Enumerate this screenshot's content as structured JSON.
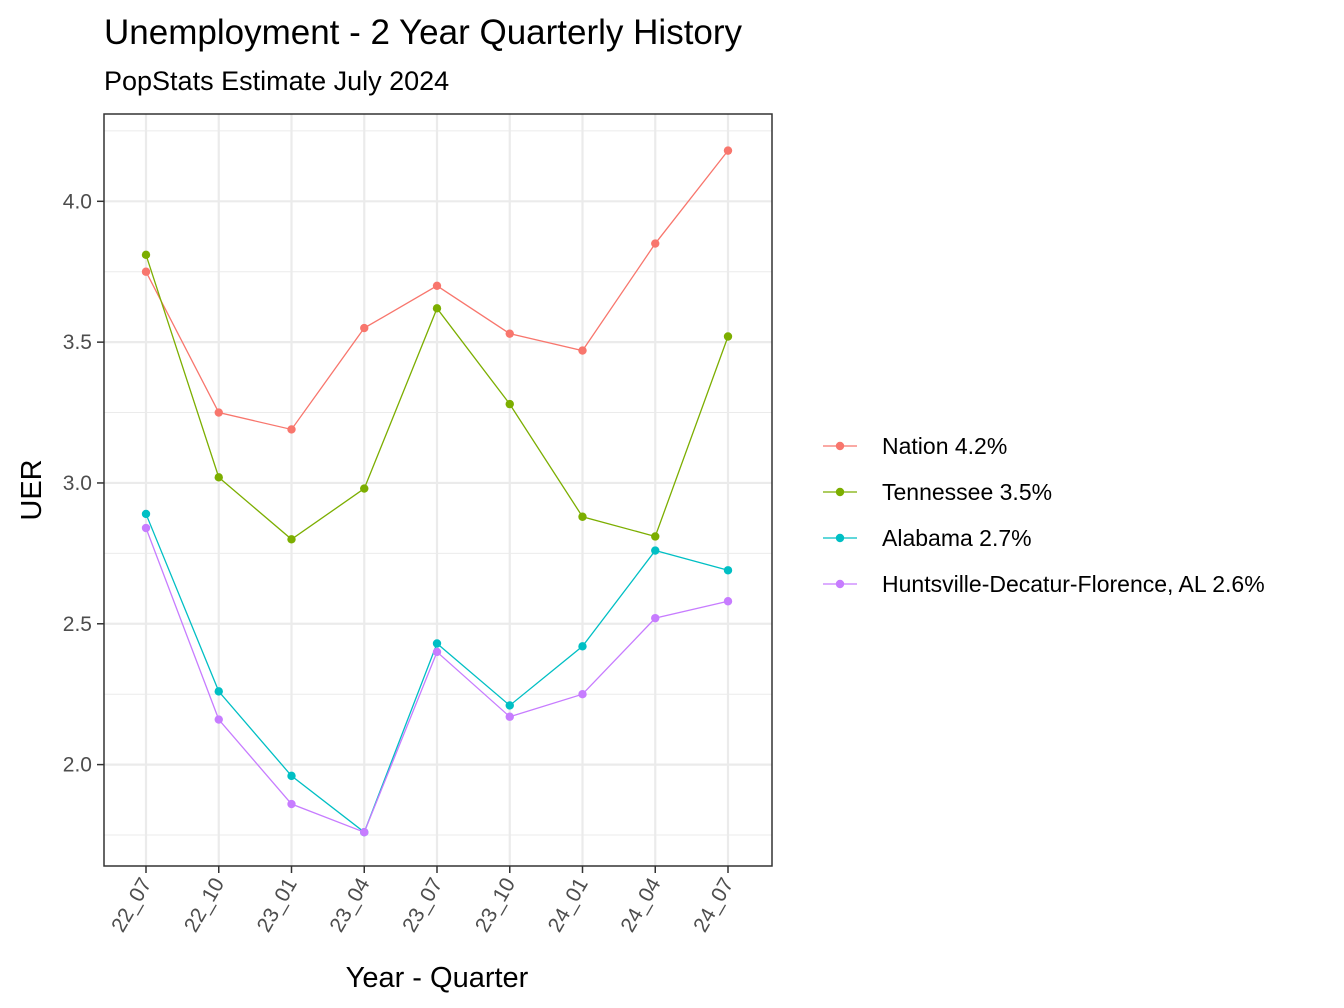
{
  "chart_data": {
    "type": "line",
    "title": "Unemployment - 2 Year Quarterly History",
    "subtitle": "PopStats Estimate July 2024",
    "xlabel": "Year - Quarter",
    "ylabel": "UER",
    "categories": [
      "22_07",
      "22_10",
      "23_01",
      "23_04",
      "23_07",
      "23_10",
      "24_01",
      "24_04",
      "24_07"
    ],
    "yticks": [
      2.0,
      2.5,
      3.0,
      3.5,
      4.0
    ],
    "ytick_labels": [
      "2.0",
      "2.5",
      "3.0",
      "3.5",
      "4.0"
    ],
    "ylim": [
      1.64,
      4.31
    ],
    "grid": true,
    "legend_position": "right",
    "series": [
      {
        "name": "Nation 4.2%",
        "color": "#F8766D",
        "values": [
          3.75,
          3.25,
          3.19,
          3.55,
          3.7,
          3.53,
          3.47,
          3.85,
          4.18
        ]
      },
      {
        "name": "Tennessee 3.5%",
        "color": "#7CAE00",
        "values": [
          3.81,
          3.02,
          2.8,
          2.98,
          3.62,
          3.28,
          2.88,
          2.81,
          3.52
        ]
      },
      {
        "name": "Alabama 2.7%",
        "color": "#00BFC4",
        "values": [
          2.89,
          2.26,
          1.96,
          1.76,
          2.43,
          2.21,
          2.42,
          2.76,
          2.69
        ]
      },
      {
        "name": "Huntsville-Decatur-Florence, AL 2.6%",
        "color": "#C77CFF",
        "values": [
          2.84,
          2.16,
          1.86,
          1.76,
          2.4,
          2.17,
          2.25,
          2.52,
          2.58
        ]
      }
    ]
  }
}
